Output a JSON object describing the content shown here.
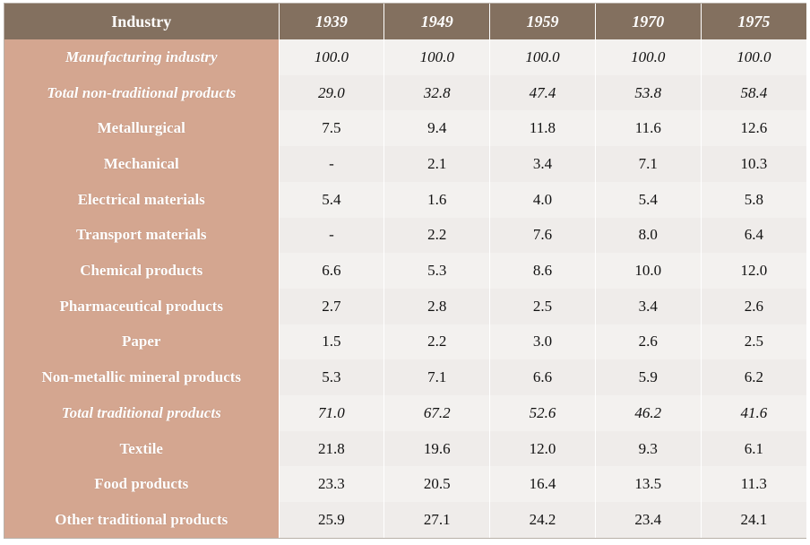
{
  "table": {
    "header": {
      "label": "Industry",
      "years": [
        "1939",
        "1949",
        "1959",
        "1970",
        "1975"
      ]
    },
    "rows": [
      {
        "label": "Manufacturing industry",
        "italic": true,
        "values": [
          "100.0",
          "100.0",
          "100.0",
          "100.0",
          "100.0"
        ]
      },
      {
        "label": "Total non-traditional products",
        "italic": true,
        "values": [
          "29.0",
          "32.8",
          "47.4",
          "53.8",
          "58.4"
        ]
      },
      {
        "label": "Metallurgical",
        "italic": false,
        "values": [
          "7.5",
          "9.4",
          "11.8",
          "11.6",
          "12.6"
        ]
      },
      {
        "label": "Mechanical",
        "italic": false,
        "values": [
          "-",
          "2.1",
          "3.4",
          "7.1",
          "10.3"
        ]
      },
      {
        "label": "Electrical materials",
        "italic": false,
        "values": [
          "5.4",
          "1.6",
          "4.0",
          "5.4",
          "5.8"
        ]
      },
      {
        "label": "Transport materials",
        "italic": false,
        "values": [
          "-",
          "2.2",
          "7.6",
          "8.0",
          "6.4"
        ]
      },
      {
        "label": "Chemical products",
        "italic": false,
        "values": [
          "6.6",
          "5.3",
          "8.6",
          "10.0",
          "12.0"
        ]
      },
      {
        "label": "Pharmaceutical products",
        "italic": false,
        "values": [
          "2.7",
          "2.8",
          "2.5",
          "3.4",
          "2.6"
        ]
      },
      {
        "label": "Paper",
        "italic": false,
        "values": [
          "1.5",
          "2.2",
          "3.0",
          "2.6",
          "2.5"
        ]
      },
      {
        "label": "Non-metallic mineral products",
        "italic": false,
        "values": [
          "5.3",
          "7.1",
          "6.6",
          "5.9",
          "6.2"
        ]
      },
      {
        "label": "Total traditional products",
        "italic": true,
        "values": [
          "71.0",
          "67.2",
          "52.6",
          "46.2",
          "41.6"
        ]
      },
      {
        "label": "Textile",
        "italic": false,
        "values": [
          "21.8",
          "19.6",
          "12.0",
          "9.3",
          "6.1"
        ]
      },
      {
        "label": "Food products",
        "italic": false,
        "values": [
          "23.3",
          "20.5",
          "16.4",
          "13.5",
          "11.3"
        ]
      },
      {
        "label": "Other traditional products",
        "italic": false,
        "values": [
          "25.9",
          "27.1",
          "24.2",
          "23.4",
          "24.1"
        ]
      }
    ]
  },
  "colors": {
    "header_bg": "#83705f",
    "label_bg": "#d4a690",
    "value_bg": "#f3f1ef"
  }
}
